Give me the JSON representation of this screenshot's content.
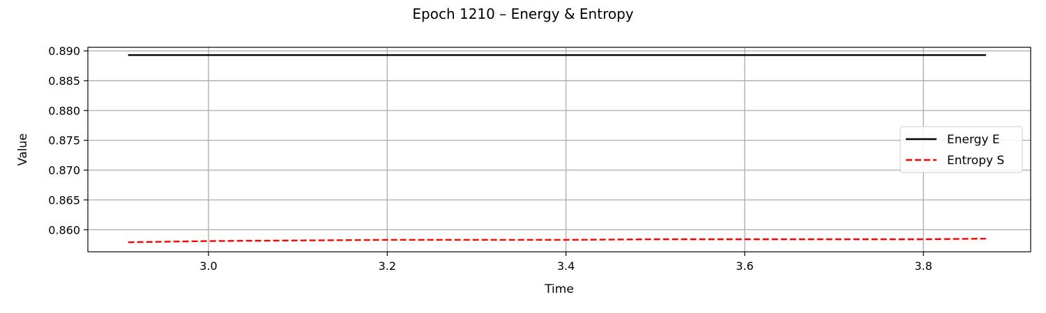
{
  "chart_data": {
    "type": "line",
    "title": "Epoch 1210 – Energy & Entropy",
    "xlabel": "Time",
    "ylabel": "Value",
    "xlim": [
      2.865,
      3.92
    ],
    "ylim": [
      0.8563,
      0.8906
    ],
    "xticks": [
      3.0,
      3.2,
      3.4,
      3.6,
      3.8
    ],
    "xtick_labels": [
      "3.0",
      "3.2",
      "3.4",
      "3.6",
      "3.8"
    ],
    "yticks": [
      0.86,
      0.865,
      0.87,
      0.875,
      0.88,
      0.885,
      0.89
    ],
    "ytick_labels": [
      "0.860",
      "0.865",
      "0.870",
      "0.875",
      "0.880",
      "0.885",
      "0.890"
    ],
    "grid": true,
    "legend_position": "center-right",
    "series": [
      {
        "name": "Energy E",
        "color": "#000000",
        "style": "solid",
        "x": [
          2.91,
          3.0,
          3.2,
          3.4,
          3.6,
          3.8,
          3.87
        ],
        "y": [
          0.8893,
          0.8893,
          0.8893,
          0.8893,
          0.8893,
          0.8893,
          0.8893
        ]
      },
      {
        "name": "Entropy S",
        "color": "#ff0000",
        "style": "dashed",
        "x": [
          2.91,
          3.0,
          3.1,
          3.2,
          3.3,
          3.4,
          3.5,
          3.6,
          3.7,
          3.8,
          3.87
        ],
        "y": [
          0.8579,
          0.8581,
          0.8582,
          0.8583,
          0.8583,
          0.8583,
          0.8584,
          0.8584,
          0.8584,
          0.8584,
          0.8585
        ]
      }
    ]
  }
}
